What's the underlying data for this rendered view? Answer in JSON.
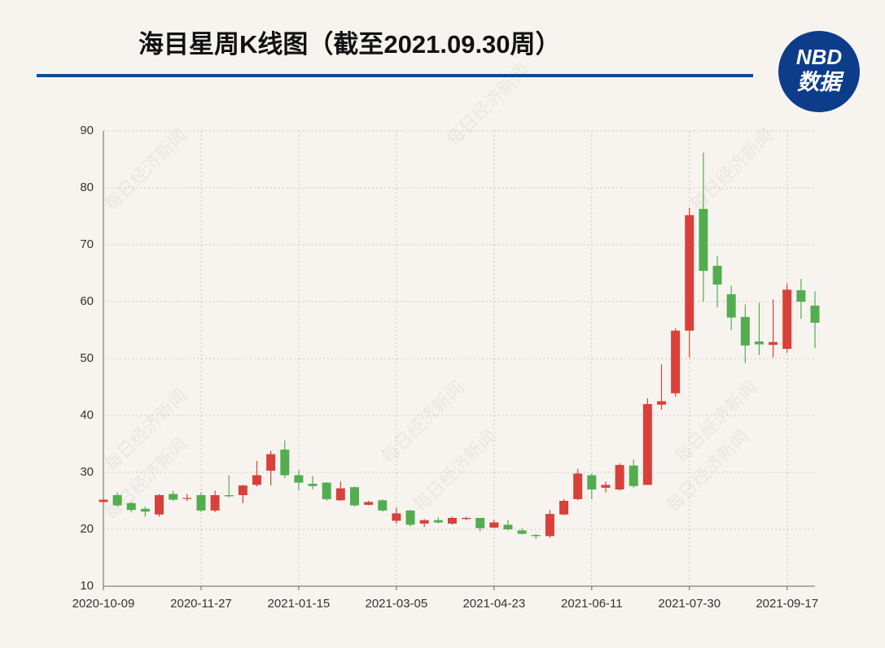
{
  "chart_data": {
    "type": "candlestick",
    "title": "海目星周K线图（截至2021.09.30周）",
    "logo_top": "NBD",
    "logo_bottom": "数据",
    "watermark": "每日经济新闻",
    "categories": [
      "2020-10-09",
      null,
      null,
      null,
      null,
      null,
      null,
      "2020-11-27",
      null,
      null,
      null,
      null,
      null,
      null,
      "2021-01-15",
      null,
      null,
      null,
      null,
      null,
      null,
      "2021-03-05",
      null,
      null,
      null,
      null,
      null,
      null,
      "2021-04-23",
      null,
      null,
      null,
      null,
      null,
      null,
      "2021-06-11",
      null,
      null,
      null,
      null,
      null,
      null,
      "2021-07-30",
      null,
      null,
      null,
      null,
      null,
      null,
      "2021-09-17",
      null,
      null
    ],
    "open": [
      24.8,
      26.0,
      24.6,
      23.6,
      22.6,
      26.2,
      25.5,
      26.0,
      23.3,
      26.0,
      26.0,
      27.8,
      30.3,
      34.0,
      29.5,
      28.0,
      28.2,
      25.1,
      27.4,
      24.3,
      25.1,
      21.5,
      23.3,
      21.0,
      21.6,
      21.0,
      21.8,
      22.0,
      20.3,
      20.8,
      19.8,
      19.0,
      18.8,
      22.6,
      25.3,
      29.5,
      27.3,
      27.0,
      31.2,
      27.8,
      41.9,
      43.9,
      54.9,
      76.3,
      66.3,
      61.3,
      57.3,
      53.0,
      52.4,
      51.7,
      62.0,
      59.3
    ],
    "high": [
      25.4,
      26.5,
      24.8,
      24.0,
      26.2,
      26.8,
      26.2,
      26.5,
      26.8,
      29.5,
      27.8,
      32.0,
      33.8,
      35.6,
      30.4,
      29.4,
      28.3,
      28.4,
      27.5,
      25.0,
      25.3,
      23.8,
      23.4,
      21.8,
      22.1,
      22.2,
      22.2,
      22.0,
      21.7,
      21.6,
      20.2,
      19.2,
      23.4,
      25.3,
      30.6,
      29.8,
      28.4,
      31.6,
      32.3,
      43.0,
      49.0,
      55.3,
      76.5,
      86.2,
      68.0,
      62.8,
      59.5,
      59.8,
      60.4,
      63.2,
      64.0,
      61.8
    ],
    "low": [
      24.6,
      24.0,
      23.0,
      22.2,
      22.2,
      25.0,
      25.0,
      23.0,
      23.0,
      25.6,
      24.6,
      27.5,
      27.7,
      29.0,
      26.8,
      27.0,
      25.0,
      25.0,
      24.0,
      24.2,
      23.1,
      21.0,
      20.5,
      20.4,
      21.0,
      20.8,
      21.6,
      19.6,
      20.2,
      19.8,
      19.1,
      18.3,
      18.5,
      22.5,
      25.1,
      25.3,
      26.5,
      26.8,
      27.3,
      27.8,
      41.0,
      43.3,
      50.2,
      60.0,
      59.0,
      55.0,
      49.2,
      50.6,
      50.2,
      51.0,
      57.0,
      51.8
    ],
    "close": [
      25.2,
      24.2,
      23.4,
      23.1,
      26.0,
      25.2,
      25.5,
      23.3,
      26.0,
      25.8,
      27.7,
      29.5,
      33.2,
      29.5,
      28.2,
      27.6,
      25.3,
      27.2,
      24.2,
      24.8,
      23.3,
      22.8,
      20.8,
      21.6,
      21.2,
      22.0,
      22.0,
      20.2,
      21.2,
      20.0,
      19.2,
      18.8,
      22.7,
      25.0,
      29.8,
      27.0,
      27.8,
      31.3,
      27.6,
      42.0,
      42.5,
      54.9,
      75.2,
      65.4,
      63.0,
      57.2,
      52.3,
      52.5,
      52.9,
      62.1,
      60.0,
      56.3
    ],
    "up_color": "#d9403a",
    "down_color": "#52ad4f",
    "ylim": [
      10,
      90
    ],
    "yticks": [
      10,
      20,
      30,
      40,
      50,
      60,
      70,
      80,
      90
    ],
    "grid": true
  }
}
